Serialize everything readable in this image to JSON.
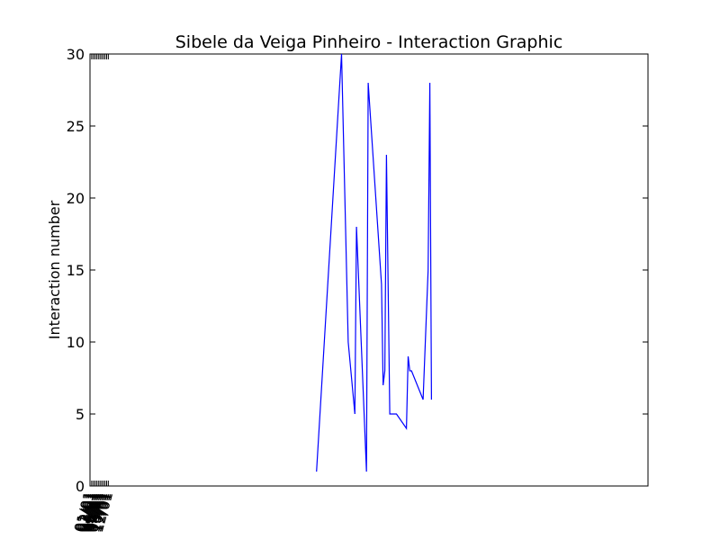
{
  "chart_data": {
    "type": "line",
    "title": "Sibele da Veiga Pinheiro - Interaction Graphic",
    "xlabel": "",
    "ylabel": "Interaction number",
    "xlim": [
      "01-01",
      "12-01"
    ],
    "ylim": [
      0,
      30
    ],
    "grid": false,
    "x_ticks": [
      "01/01",
      "02/01",
      "03/01",
      "04/01",
      "05/01",
      "06/01",
      "07/01",
      "08/01",
      "09/01",
      "10/01",
      "11/01",
      "12/01"
    ],
    "y_ticks": [
      0,
      5,
      10,
      15,
      20,
      25,
      30
    ],
    "color": "#0000ff",
    "series": [
      {
        "x": [
          "05-16",
          "05-31",
          "06-04",
          "06-08",
          "06-09",
          "06-15",
          "06-16",
          "06-24",
          "06-25",
          "06-26",
          "06-27",
          "06-29",
          "07-03",
          "07-09",
          "07-10",
          "07-11",
          "07-12",
          "07-19",
          "07-22",
          "07-23",
          "07-24"
        ],
        "y": [
          1,
          30,
          10,
          5,
          18,
          1,
          28,
          14,
          7,
          8,
          23,
          5,
          5,
          4,
          9,
          8,
          8,
          6,
          15,
          28,
          6
        ]
      }
    ]
  }
}
